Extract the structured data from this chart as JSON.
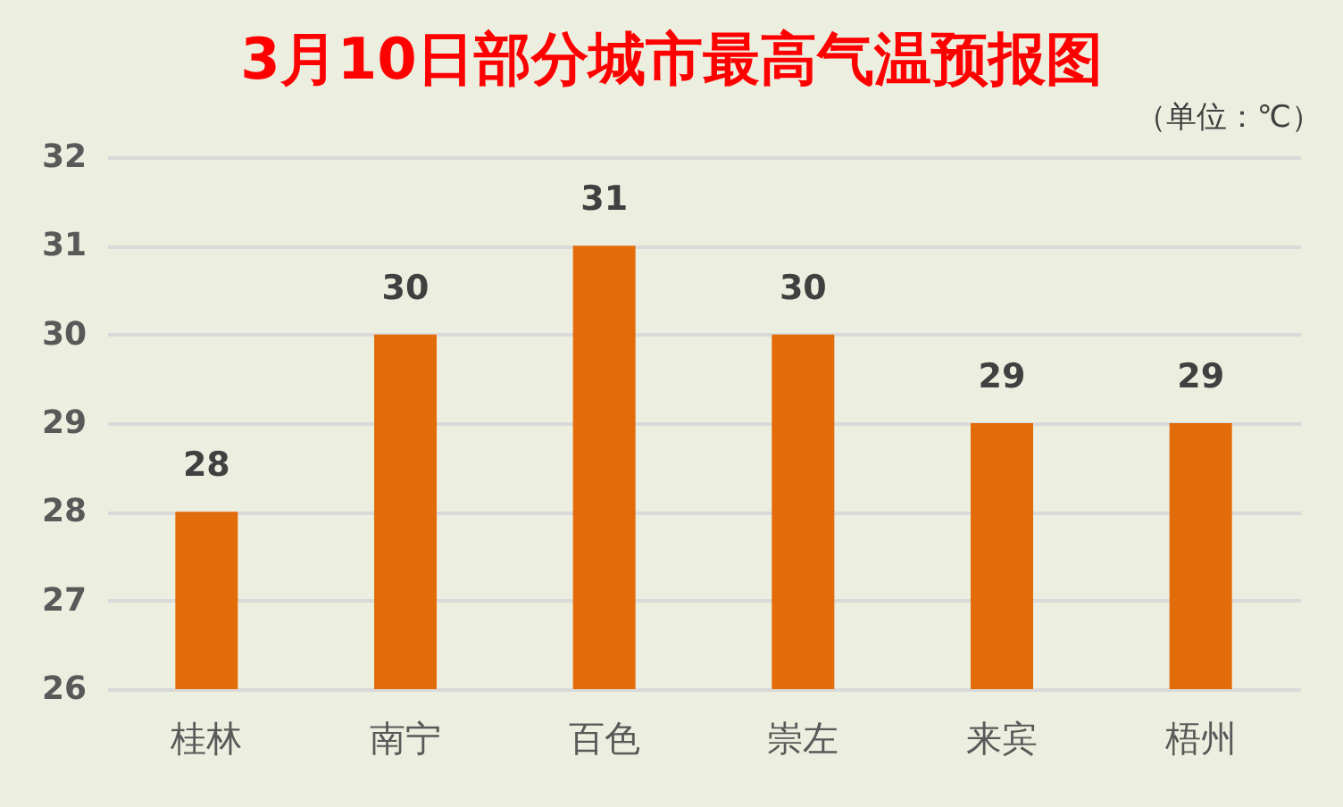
{
  "chart_data": {
    "type": "bar",
    "title": "3月10日部分城市最高气温预报图",
    "subtitle": "（单位：℃）",
    "categories": [
      "桂林",
      "南宁",
      "百色",
      "崇左",
      "来宾",
      "梧州"
    ],
    "values": [
      28,
      30,
      31,
      30,
      29,
      29
    ],
    "color": "#e36c0a",
    "ylim": [
      26,
      32
    ],
    "yticks": [
      26,
      27,
      28,
      29,
      30,
      31,
      32
    ],
    "grid": "y",
    "data_labels": true
  }
}
